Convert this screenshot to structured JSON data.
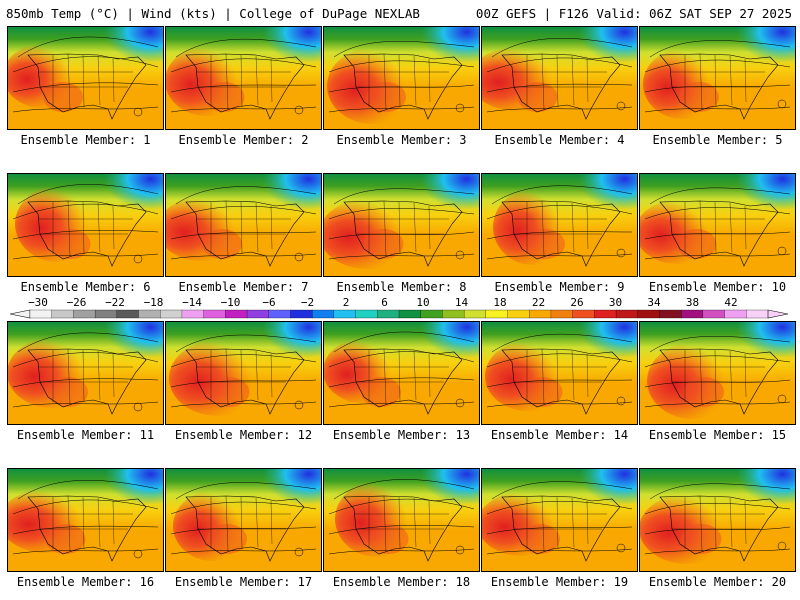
{
  "header": {
    "left": "850mb Temp (°C) | Wind (kts) | College of DuPage NEXLAB",
    "right": "00Z GEFS | F126 Valid: 06Z SAT SEP 27 2025"
  },
  "members": [
    {
      "label": "Ensemble Member: 1"
    },
    {
      "label": "Ensemble Member: 2"
    },
    {
      "label": "Ensemble Member: 3"
    },
    {
      "label": "Ensemble Member: 4"
    },
    {
      "label": "Ensemble Member: 5"
    },
    {
      "label": "Ensemble Member: 6"
    },
    {
      "label": "Ensemble Member: 7"
    },
    {
      "label": "Ensemble Member: 8"
    },
    {
      "label": "Ensemble Member: 9"
    },
    {
      "label": "Ensemble Member: 10"
    },
    {
      "label": "Ensemble Member: 11"
    },
    {
      "label": "Ensemble Member: 12"
    },
    {
      "label": "Ensemble Member: 13"
    },
    {
      "label": "Ensemble Member: 14"
    },
    {
      "label": "Ensemble Member: 15"
    },
    {
      "label": "Ensemble Member: 16"
    },
    {
      "label": "Ensemble Member: 17"
    },
    {
      "label": "Ensemble Member: 18"
    },
    {
      "label": "Ensemble Member: 19"
    },
    {
      "label": "Ensemble Member: 20"
    }
  ],
  "colorbar": {
    "ticks": [
      "-30",
      "-26",
      "-22",
      "-18",
      "-14",
      "-10",
      "-6",
      "-2",
      "2",
      "6",
      "10",
      "14",
      "18",
      "22",
      "26",
      "30",
      "34",
      "38",
      "42"
    ],
    "colors": [
      "#f2f2f2",
      "#c8c8c8",
      "#a0a0a0",
      "#808080",
      "#5a5a5a",
      "#b0b0b0",
      "#d0d0d0",
      "#f0a0f0",
      "#e060e0",
      "#c020c0",
      "#9040e0",
      "#6060ff",
      "#2030e0",
      "#1080f0",
      "#20c0f0",
      "#20d0c0",
      "#20b080",
      "#109040",
      "#40a020",
      "#90c020",
      "#d0e030",
      "#f8f020",
      "#f8d010",
      "#f8a800",
      "#f08010",
      "#f05020",
      "#e02020",
      "#c01818",
      "#a01010",
      "#801020",
      "#a01080",
      "#d050c0",
      "#f0a0f0",
      "#f8d0f8"
    ]
  }
}
